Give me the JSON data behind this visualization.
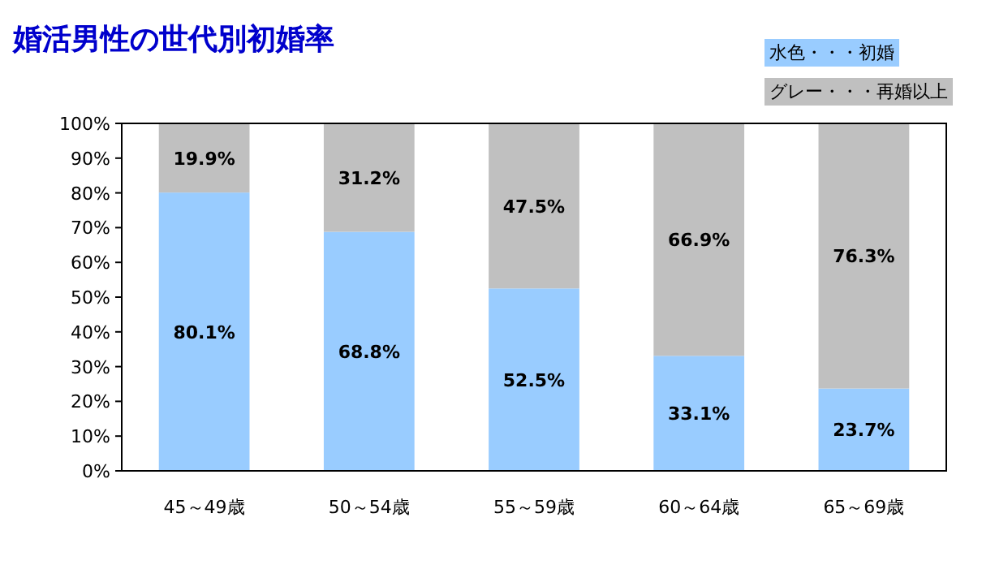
{
  "chart_data": {
    "type": "bar",
    "title": "婚活男性の世代別初婚率",
    "stacked": true,
    "legend": "top right",
    "grid": false,
    "categories": [
      "45～49歳",
      "50～54歳",
      "55～59歳",
      "60～64歳",
      "65～69歳"
    ],
    "ylim": [
      0,
      100
    ],
    "yticks": [
      {
        "value": 0,
        "label": "0%"
      },
      {
        "value": 10,
        "label": "10%"
      },
      {
        "value": 20,
        "label": "20%"
      },
      {
        "value": 30,
        "label": "30%"
      },
      {
        "value": 40,
        "label": "40%"
      },
      {
        "value": 50,
        "label": "50%"
      },
      {
        "value": 60,
        "label": "60%"
      },
      {
        "value": 70,
        "label": "70%"
      },
      {
        "value": 80,
        "label": "80%"
      },
      {
        "value": 90,
        "label": "90%"
      },
      {
        "value": 100,
        "label": "100%"
      }
    ],
    "series": [
      {
        "name": "水色・・・初婚",
        "color": "#99ccff",
        "values": [
          80.1,
          68.8,
          52.5,
          33.1,
          23.7
        ],
        "value_labels": [
          "80.1%",
          "68.8%",
          "52.5%",
          "33.1%",
          "23.7%"
        ]
      },
      {
        "name": "グレー・・・再婚以上",
        "color": "#c0c0c0",
        "values": [
          19.9,
          31.2,
          47.5,
          66.9,
          76.3
        ],
        "value_labels": [
          "19.9%",
          "31.2%",
          "47.5%",
          "66.9%",
          "76.3%"
        ]
      }
    ]
  }
}
